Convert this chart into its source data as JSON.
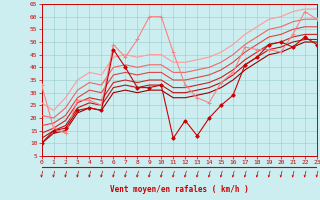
{
  "bg_color": "#cceef0",
  "grid_color": "#99cccc",
  "axis_color": "#cc0000",
  "xlabel": "Vent moyen/en rafales ( km/h )",
  "xlim": [
    0,
    23
  ],
  "ylim": [
    5,
    65
  ],
  "yticks": [
    5,
    10,
    15,
    20,
    25,
    30,
    35,
    40,
    45,
    50,
    55,
    60,
    65
  ],
  "xticks": [
    0,
    1,
    2,
    3,
    4,
    5,
    6,
    7,
    8,
    9,
    10,
    11,
    12,
    13,
    14,
    15,
    16,
    17,
    18,
    19,
    20,
    21,
    22,
    23
  ],
  "lines": [
    {
      "x": [
        0,
        1,
        2,
        3,
        4,
        5,
        6,
        7,
        8,
        9,
        10,
        11,
        12,
        13,
        14,
        15,
        16,
        17,
        18,
        19,
        20,
        21,
        22,
        23
      ],
      "y": [
        10,
        15,
        16,
        23,
        24,
        23,
        47,
        40,
        32,
        32,
        33,
        12,
        19,
        13,
        20,
        25,
        29,
        41,
        44,
        49,
        50,
        48,
        52,
        49
      ],
      "color": "#cc0000",
      "lw": 0.8,
      "marker": "D",
      "ms": 1.8,
      "zorder": 5
    },
    {
      "x": [
        0,
        1,
        2,
        3,
        4,
        5,
        6,
        7,
        8,
        9,
        10,
        11,
        12,
        13,
        14,
        15,
        16,
        17,
        18,
        19,
        20,
        21,
        22,
        23
      ],
      "y": [
        33,
        16,
        14,
        27,
        27,
        25,
        49,
        44,
        51,
        60,
        60,
        46,
        33,
        28,
        26,
        34,
        38,
        48,
        47,
        47,
        46,
        53,
        62,
        59
      ],
      "color": "#ff8080",
      "lw": 0.8,
      "marker": "+",
      "ms": 3.0,
      "zorder": 4
    },
    {
      "x": [
        0,
        1,
        2,
        3,
        4,
        5,
        6,
        7,
        8,
        9,
        10,
        11,
        12,
        13,
        14,
        15,
        16,
        17,
        18,
        19,
        20,
        21,
        22,
        23
      ],
      "y": [
        10,
        14,
        15,
        22,
        24,
        23,
        30,
        31,
        30,
        31,
        31,
        28,
        28,
        29,
        30,
        32,
        35,
        39,
        42,
        45,
        46,
        48,
        50,
        50
      ],
      "color": "#990000",
      "lw": 0.8,
      "marker": null,
      "ms": 0,
      "zorder": 3
    },
    {
      "x": [
        0,
        1,
        2,
        3,
        4,
        5,
        6,
        7,
        8,
        9,
        10,
        11,
        12,
        13,
        14,
        15,
        16,
        17,
        18,
        19,
        20,
        21,
        22,
        23
      ],
      "y": [
        12,
        15,
        17,
        24,
        26,
        25,
        32,
        33,
        32,
        33,
        33,
        30,
        30,
        31,
        32,
        34,
        37,
        41,
        44,
        47,
        48,
        50,
        51,
        51
      ],
      "color": "#bb1111",
      "lw": 0.8,
      "marker": null,
      "ms": 0,
      "zorder": 3
    },
    {
      "x": [
        0,
        1,
        2,
        3,
        4,
        5,
        6,
        7,
        8,
        9,
        10,
        11,
        12,
        13,
        14,
        15,
        16,
        17,
        18,
        19,
        20,
        21,
        22,
        23
      ],
      "y": [
        14,
        16,
        19,
        26,
        28,
        27,
        34,
        35,
        34,
        35,
        35,
        32,
        32,
        33,
        34,
        36,
        39,
        43,
        46,
        49,
        50,
        52,
        53,
        53
      ],
      "color": "#cc2222",
      "lw": 0.8,
      "marker": null,
      "ms": 0,
      "zorder": 3
    },
    {
      "x": [
        0,
        1,
        2,
        3,
        4,
        5,
        6,
        7,
        8,
        9,
        10,
        11,
        12,
        13,
        14,
        15,
        16,
        17,
        18,
        19,
        20,
        21,
        22,
        23
      ],
      "y": [
        17,
        18,
        21,
        28,
        31,
        30,
        37,
        38,
        37,
        38,
        38,
        35,
        35,
        36,
        37,
        39,
        42,
        46,
        49,
        52,
        53,
        55,
        56,
        56
      ],
      "color": "#dd4444",
      "lw": 0.8,
      "marker": null,
      "ms": 0,
      "zorder": 3
    },
    {
      "x": [
        0,
        1,
        2,
        3,
        4,
        5,
        6,
        7,
        8,
        9,
        10,
        11,
        12,
        13,
        14,
        15,
        16,
        17,
        18,
        19,
        20,
        21,
        22,
        23
      ],
      "y": [
        21,
        20,
        24,
        31,
        34,
        33,
        40,
        41,
        40,
        41,
        41,
        38,
        38,
        39,
        40,
        42,
        45,
        49,
        52,
        55,
        56,
        58,
        59,
        59
      ],
      "color": "#ee6666",
      "lw": 0.8,
      "marker": null,
      "ms": 0,
      "zorder": 3
    },
    {
      "x": [
        0,
        1,
        2,
        3,
        4,
        5,
        6,
        7,
        8,
        9,
        10,
        11,
        12,
        13,
        14,
        15,
        16,
        17,
        18,
        19,
        20,
        21,
        22,
        23
      ],
      "y": [
        26,
        23,
        28,
        35,
        38,
        37,
        44,
        45,
        44,
        45,
        45,
        42,
        42,
        43,
        44,
        46,
        49,
        53,
        56,
        59,
        60,
        62,
        63,
        63
      ],
      "color": "#ff9999",
      "lw": 0.8,
      "marker": null,
      "ms": 0,
      "zorder": 3
    }
  ]
}
